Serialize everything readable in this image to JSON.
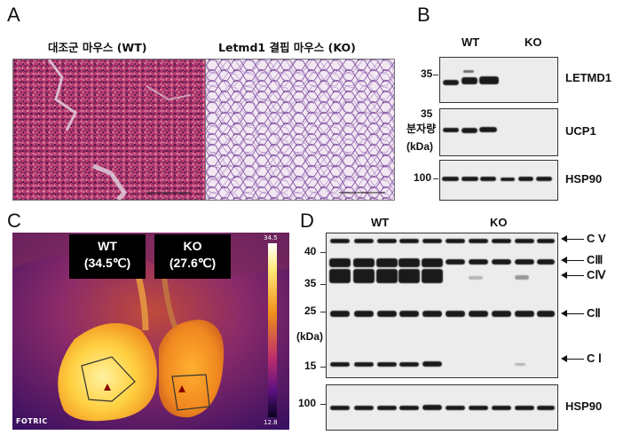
{
  "panelA": {
    "letter": "A",
    "wt_title": "대조군 마우스 (WT)",
    "ko_title": "Letmd1 결핍 마우스 (KO)"
  },
  "panelB": {
    "letter": "B",
    "wt": "WT",
    "ko": "KO",
    "mw_35a": "35",
    "mw_35b": "35",
    "mw_unit_ko": "분자량",
    "mw_unit": "(kDa)",
    "mw_100": "100",
    "labels": [
      "LETMD1",
      "UCP1",
      "HSP90"
    ]
  },
  "panelC": {
    "letter": "C",
    "wt_tag_l1": "WT",
    "wt_tag_l2": "(34.5℃)",
    "ko_tag_l1": "KO",
    "ko_tag_l2": "(27.6℃)",
    "scale_max": "34.5",
    "scale_min": "12.8",
    "brand": "FOTRIC"
  },
  "panelD": {
    "letter": "D",
    "wt": "WT",
    "ko": "KO",
    "mw": [
      "40",
      "35",
      "25",
      "15"
    ],
    "mw_unit": "(kDa)",
    "mw_100": "100",
    "complexes": [
      "C V",
      "CⅢ",
      "CⅣ",
      "CⅡ",
      "C Ⅰ"
    ],
    "hsp": "HSP90"
  },
  "colors": {
    "he_pink": "#b8336a",
    "he_purple": "#6a3a8a",
    "thermal_hot": "#ffd84a",
    "thermal_bg": "#5a1a6a"
  }
}
